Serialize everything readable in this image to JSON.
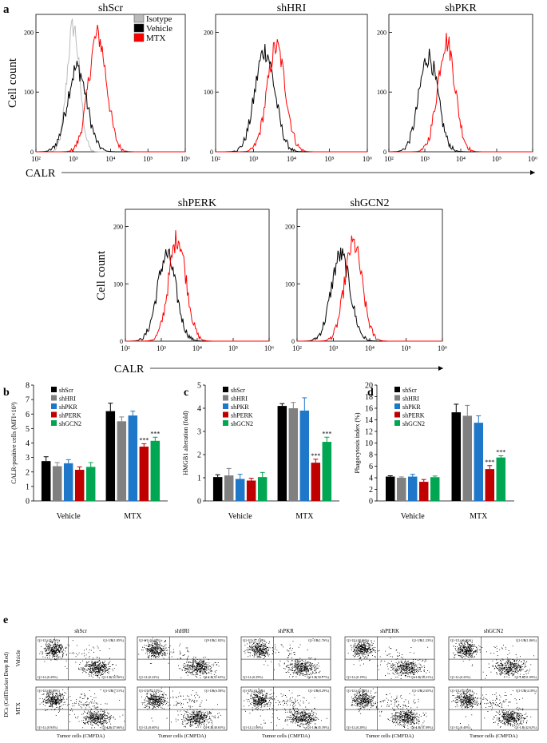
{
  "panel_labels": {
    "a": "a",
    "b": "b",
    "c": "c",
    "d": "d",
    "e": "e"
  },
  "histograms": {
    "x_tick_labels": [
      "10²",
      "10³",
      "10⁴",
      "10⁵",
      "10⁶"
    ],
    "x_label": "CALR",
    "y_label": "Cell count",
    "y_ticks": [
      "0",
      "100",
      "200"
    ],
    "legend": [
      "Isotype",
      "Vehicle",
      "MTX"
    ],
    "colors": {
      "isotype": "#bbbbbb",
      "vehicle": "#000000",
      "mtx": "#ff0000"
    },
    "panels": [
      {
        "title": "shScr",
        "vehicle_peak": [
          3.1,
          140
        ],
        "mtx_peak": [
          3.65,
          195
        ],
        "isotype_peak": [
          3.0,
          210
        ]
      },
      {
        "title": "shHRI",
        "vehicle_peak": [
          3.3,
          170
        ],
        "mtx_peak": [
          3.6,
          175
        ]
      },
      {
        "title": "shPKR",
        "vehicle_peak": [
          3.1,
          160
        ],
        "mtx_peak": [
          3.6,
          185
        ]
      },
      {
        "title": "shPERK",
        "vehicle_peak": [
          3.15,
          150
        ],
        "mtx_peak": [
          3.45,
          180
        ]
      },
      {
        "title": "shGCN2",
        "vehicle_peak": [
          3.2,
          150
        ],
        "mtx_peak": [
          3.55,
          170
        ]
      }
    ]
  },
  "chart_data": [
    {
      "type": "bar",
      "panel": "b",
      "ylabel": "CALR-positive  cells  (MFI×10³)",
      "ylim": [
        0,
        8
      ],
      "yticks": [
        0,
        1,
        2,
        3,
        4,
        5,
        6,
        7,
        8
      ],
      "categories": [
        "Vehicle",
        "MTX"
      ],
      "series": [
        {
          "name": "shScr",
          "color": "#000000",
          "values": [
            2.75,
            6.2
          ],
          "errors": [
            0.3,
            0.55
          ]
        },
        {
          "name": "shHRI",
          "color": "#808080",
          "values": [
            2.4,
            5.5
          ],
          "errors": [
            0.25,
            0.3
          ]
        },
        {
          "name": "shPKR",
          "color": "#1f77c9",
          "values": [
            2.6,
            5.9
          ],
          "errors": [
            0.25,
            0.3
          ]
        },
        {
          "name": "shPERK",
          "color": "#c00000",
          "values": [
            2.15,
            3.75
          ],
          "errors": [
            0.2,
            0.2
          ]
        },
        {
          "name": "shGCN2",
          "color": "#00a651",
          "values": [
            2.35,
            4.15
          ],
          "errors": [
            0.3,
            0.25
          ]
        }
      ],
      "significance": [
        "",
        "",
        "",
        "***",
        "***"
      ]
    },
    {
      "type": "bar",
      "panel": "c",
      "ylabel": "HMGB1 alteration (fold)",
      "ylim": [
        0,
        5
      ],
      "yticks": [
        0,
        1,
        2,
        3,
        4,
        5
      ],
      "categories": [
        "Vehicle",
        "MTX"
      ],
      "series": [
        {
          "name": "shScr",
          "color": "#000000",
          "values": [
            1.03,
            4.1
          ],
          "errors": [
            0.1,
            0.1
          ]
        },
        {
          "name": "shHRI",
          "color": "#808080",
          "values": [
            1.1,
            4.0
          ],
          "errors": [
            0.3,
            0.25
          ]
        },
        {
          "name": "shPKR",
          "color": "#1f77c9",
          "values": [
            0.95,
            3.9
          ],
          "errors": [
            0.2,
            0.55
          ]
        },
        {
          "name": "shPERK",
          "color": "#c00000",
          "values": [
            0.88,
            1.65
          ],
          "errors": [
            0.1,
            0.15
          ]
        },
        {
          "name": "shGCN2",
          "color": "#00a651",
          "values": [
            1.03,
            2.55
          ],
          "errors": [
            0.2,
            0.2
          ]
        }
      ],
      "significance": [
        "",
        "",
        "",
        "***",
        "***"
      ]
    },
    {
      "type": "bar",
      "panel": "d",
      "ylabel": "Phagocytosis index (%)",
      "ylim": [
        0,
        20
      ],
      "yticks": [
        0,
        2,
        4,
        6,
        8,
        10,
        12,
        14,
        16,
        18,
        20
      ],
      "categories": [
        "Vehicle",
        "MTX"
      ],
      "series": [
        {
          "name": "shScr",
          "color": "#000000",
          "values": [
            4.2,
            15.3
          ],
          "errors": [
            0.15,
            1.4
          ]
        },
        {
          "name": "shHRI",
          "color": "#808080",
          "values": [
            4.0,
            14.7
          ],
          "errors": [
            0.15,
            1.8
          ]
        },
        {
          "name": "shPKR",
          "color": "#1f77c9",
          "values": [
            4.2,
            13.5
          ],
          "errors": [
            0.4,
            1.2
          ]
        },
        {
          "name": "shPERK",
          "color": "#c00000",
          "values": [
            3.3,
            5.5
          ],
          "errors": [
            0.4,
            0.6
          ]
        },
        {
          "name": "shGCN2",
          "color": "#00a651",
          "values": [
            4.1,
            7.5
          ],
          "errors": [
            0.2,
            0.3
          ]
        }
      ],
      "significance": [
        "",
        "",
        "",
        "***",
        "***"
      ]
    },
    {
      "type": "scatter",
      "panel": "e",
      "ylabel": "DCs (CellTracker Deep Red)",
      "xlabel": "Tumor cells (CMFDA)",
      "x_ticks": [
        "10³",
        "10⁴",
        "10⁵",
        "10⁶",
        "10⁷"
      ],
      "y_ticks": [
        "10³",
        "10⁴",
        "10⁵",
        "10⁶"
      ],
      "row_labels": [
        "Vehicle",
        "MTX"
      ],
      "columns": [
        "shScr",
        "shHRI",
        "shPKR",
        "shPERK",
        "shGCN2"
      ],
      "quadrants": [
        [
          {
            "UL": "Q1-UL(45.31%)",
            "UR": "Q1-UR(1.85%)",
            "LL": "Q1-LL(0.29%)",
            "LR": "Q1-LR(52.56%)"
          },
          {
            "UL": "Q1-UL(46.34%)",
            "UR": "Q1-UR(1.82%)",
            "LL": "Q1-LL(0.22%)",
            "LR": "Q1-LR(51.63%)"
          },
          {
            "UL": "Q1-UL(47.10%)",
            "UR": "Q1-UR(1.76%)",
            "LL": "Q1-LL(0.29%)",
            "LR": "Q1-LR(50.77%)"
          },
          {
            "UL": "Q1-UL(48.36%)",
            "UR": "Q1-UR(1.23%)",
            "LL": "Q1-LL(0.19%)",
            "LR": "Q1-LR(50.21%)"
          },
          {
            "UL": "Q1-UL(46.81%)",
            "UR": "Q1-UR(1.86%)",
            "LL": "Q1-LL(0.23%)",
            "LR": "Q1-LR(51.09%)"
          }
        ],
        [
          {
            "UL": "Q1-UL(43.89%)",
            "UR": "Q1-UR(7.51%)",
            "LL": "Q1-LL(0.94%)",
            "LR": "Q1-LR(47.66%)"
          },
          {
            "UL": "Q1-UL(52.17%)",
            "UR": "Q1-UR(6.58%)",
            "LL": "Q1-LL(0.60%)",
            "LR": "Q1-LR(40.65%)"
          },
          {
            "UL": "Q1-UL(43.26%)",
            "UR": "Q1-UR(8.29%)",
            "LL": "Q1-LL(1.06%)",
            "LR": "Q1-LR(45.39%)"
          },
          {
            "UL": "Q1-UL(45.98%)",
            "UR": "Q1-UR(2.65%)",
            "LL": "Q1-LL(0.28%)",
            "LR": "Q1-LR(51.09%)"
          },
          {
            "UL": "Q1-UL(52.85%)",
            "UR": "Q1-UR(4.18%)",
            "LL": "Q1-LL(0.40%)",
            "LR": "Q1-LR(42.62%)"
          }
        ]
      ]
    }
  ]
}
